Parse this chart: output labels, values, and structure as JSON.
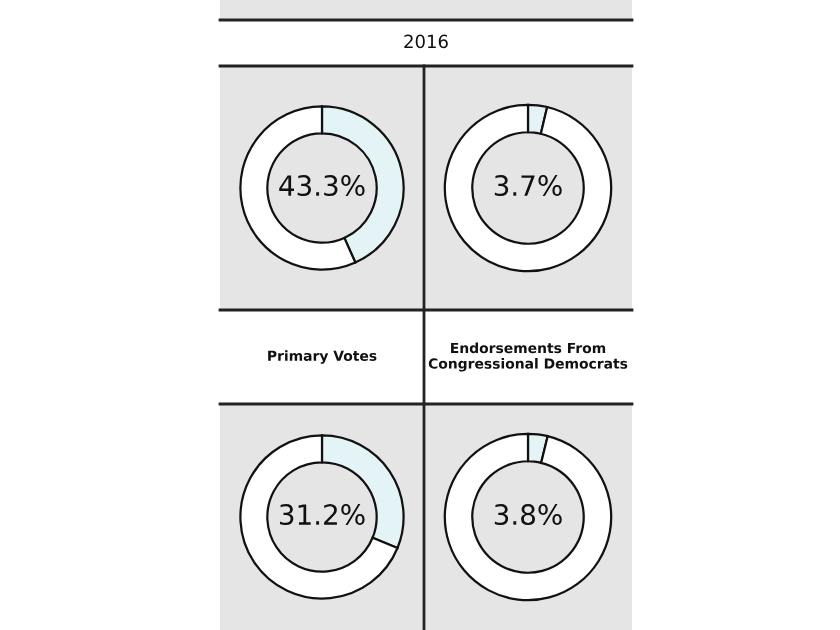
{
  "chart_data": [
    {
      "type": "donut",
      "title": "2016",
      "categories": [
        null,
        null
      ],
      "values": [
        43.3,
        56.7
      ],
      "colors": [
        "#e4f3f5",
        "#ffffff"
      ],
      "value_labels": [
        "43.3%",
        null
      ]
    },
    {
      "type": "donut",
      "categories": [
        null,
        null
      ],
      "values": [
        3.7,
        96.3
      ],
      "colors": [
        "#e4f3f5",
        "#ffffff"
      ],
      "value_labels": [
        "3.7%",
        null
      ]
    },
    {
      "type": "donut",
      "title": "Primary Votes",
      "categories": [
        null,
        null
      ],
      "values": [
        31.2,
        68.8
      ],
      "colors": [
        "#e4f3f5",
        "#ffffff"
      ],
      "value_labels": [
        "31.2%",
        null
      ]
    },
    {
      "type": "donut",
      "title": "Endorsements From Congressional Democrats",
      "categories": [
        null,
        null
      ],
      "values": [
        3.8,
        96.2
      ],
      "colors": [
        "#e4f3f5",
        "#ffffff"
      ],
      "value_labels": [
        "3.8%",
        null
      ]
    }
  ]
}
